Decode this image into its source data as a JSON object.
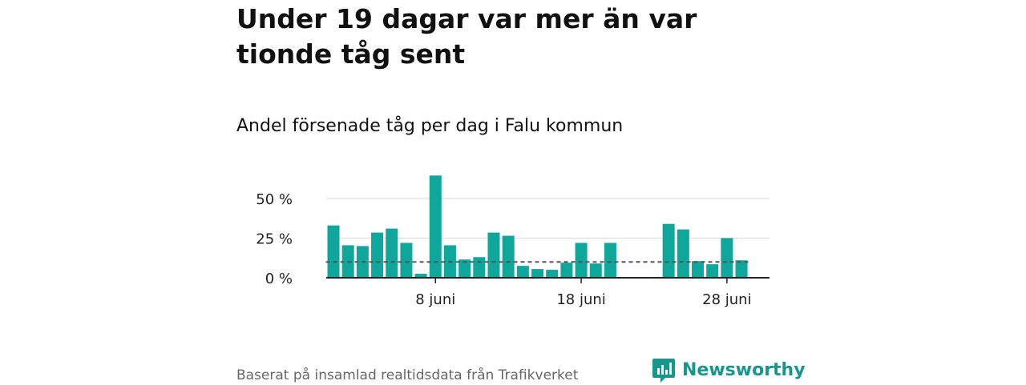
{
  "header": {
    "title": "Under 19 dagar var mer än var tionde tåg sent",
    "subtitle": "Andel försenade tåg per dag i Falu kommun"
  },
  "footer": {
    "source": "Baserat på insamlad realtidsdata från Trafikverket",
    "brand": "Newsworthy"
  },
  "colors": {
    "bar": "#0fa69b",
    "reference_line": "#555555",
    "grid": "#dddddd",
    "brand": "#17968c"
  },
  "chart_data": {
    "type": "bar",
    "title": "Andel försenade tåg per dag i Falu kommun",
    "xlabel": "",
    "ylabel": "",
    "x": [
      "1 juni",
      "2 juni",
      "3 juni",
      "4 juni",
      "5 juni",
      "6 juni",
      "7 juni",
      "8 juni",
      "9 juni",
      "10 juni",
      "11 juni",
      "12 juni",
      "13 juni",
      "14 juni",
      "15 juni",
      "16 juni",
      "17 juni",
      "18 juni",
      "19 juni",
      "20 juni",
      "21 juni",
      "22 juni",
      "23 juni",
      "24 juni",
      "25 juni",
      "26 juni",
      "27 juni",
      "28 juni",
      "29 juni"
    ],
    "values": [
      33,
      20.5,
      20,
      28.5,
      31,
      22,
      2.5,
      64.5,
      20.5,
      11.5,
      13,
      28.5,
      26.5,
      7.5,
      5.5,
      5,
      9.5,
      22,
      9,
      22,
      null,
      null,
      null,
      34,
      30.5,
      10.5,
      8.5,
      25,
      11
    ],
    "reference_line": 10,
    "yticks": [
      {
        "value": 0,
        "label": "0 %"
      },
      {
        "value": 25,
        "label": "25 %"
      },
      {
        "value": 50,
        "label": "50 %"
      }
    ],
    "xticks": [
      {
        "x": "8 juni",
        "label": "8 juni"
      },
      {
        "x": "18 juni",
        "label": "18 juni"
      },
      {
        "x": "28 juni",
        "label": "28 juni"
      }
    ],
    "ylim": [
      0,
      70
    ],
    "grid": true,
    "legend": "none"
  }
}
